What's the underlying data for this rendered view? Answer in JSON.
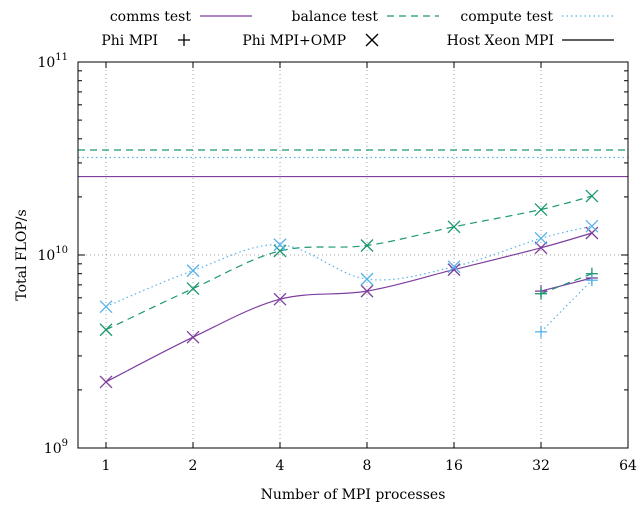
{
  "chart_data": {
    "type": "line",
    "xlabel": "Number of MPI processes",
    "ylabel": "Total FLOP/s",
    "x_scale": "log2",
    "y_scale": "log10",
    "xlim": [
      0.8,
      64
    ],
    "ylim": [
      1000000000,
      100000000000
    ],
    "x_ticks": [
      {
        "value": 1,
        "label": "1"
      },
      {
        "value": 2,
        "label": "2"
      },
      {
        "value": 4,
        "label": "4"
      },
      {
        "value": 8,
        "label": "8"
      },
      {
        "value": 16,
        "label": "16"
      },
      {
        "value": 32,
        "label": "32"
      },
      {
        "value": 64,
        "label": "64"
      }
    ],
    "y_ticks": [
      {
        "value": 1000000000,
        "base": "10",
        "exp": "9"
      },
      {
        "value": 10000000000,
        "base": "10",
        "exp": "10"
      },
      {
        "value": 100000000000,
        "base": "10",
        "exp": "11"
      }
    ],
    "grid": true,
    "legend_position": "top",
    "legend_tests": [
      {
        "name": "comms test",
        "color": "#7f3f9f",
        "dash": "solid"
      },
      {
        "name": "balance test",
        "color": "#1a9870",
        "dash": "dashed"
      },
      {
        "name": "compute test",
        "color": "#56b4e9",
        "dash": "dotted"
      }
    ],
    "legend_markers": [
      {
        "name": "Phi MPI",
        "marker": "plus"
      },
      {
        "name": "Phi MPI+OMP",
        "marker": "cross"
      },
      {
        "name": "Host Xeon MPI",
        "marker": "line"
      }
    ],
    "host_levels": [
      {
        "test": "comms test",
        "value": 25500000000
      },
      {
        "test": "balance test",
        "value": 35000000000
      },
      {
        "test": "compute test",
        "value": 32000000000
      }
    ],
    "phi_mpi_omp": [
      {
        "test": "comms test",
        "x": [
          1,
          2,
          4,
          8,
          16,
          32,
          48
        ],
        "y": [
          2200000000,
          3750000000,
          5900000000,
          6500000000,
          8400000000,
          10900000000,
          13000000000
        ]
      },
      {
        "test": "balance test",
        "x": [
          1,
          2,
          4,
          8,
          16,
          32,
          48
        ],
        "y": [
          4100000000,
          6700000000,
          10500000000,
          11200000000,
          14000000000,
          17200000000,
          20200000000
        ]
      },
      {
        "test": "compute test",
        "x": [
          1,
          2,
          4,
          8,
          16,
          32,
          48
        ],
        "y": [
          5400000000,
          8300000000,
          11300000000,
          7500000000,
          8700000000,
          12200000000,
          14100000000
        ]
      }
    ],
    "phi_mpi": [
      {
        "test": "comms test",
        "x": [
          32,
          48
        ],
        "y": [
          6500000000,
          7600000000
        ]
      },
      {
        "test": "balance test",
        "x": [
          32,
          48
        ],
        "y": [
          6300000000,
          8000000000
        ]
      },
      {
        "test": "compute test",
        "x": [
          32,
          48
        ],
        "y": [
          4000000000,
          7400000000
        ]
      }
    ]
  }
}
